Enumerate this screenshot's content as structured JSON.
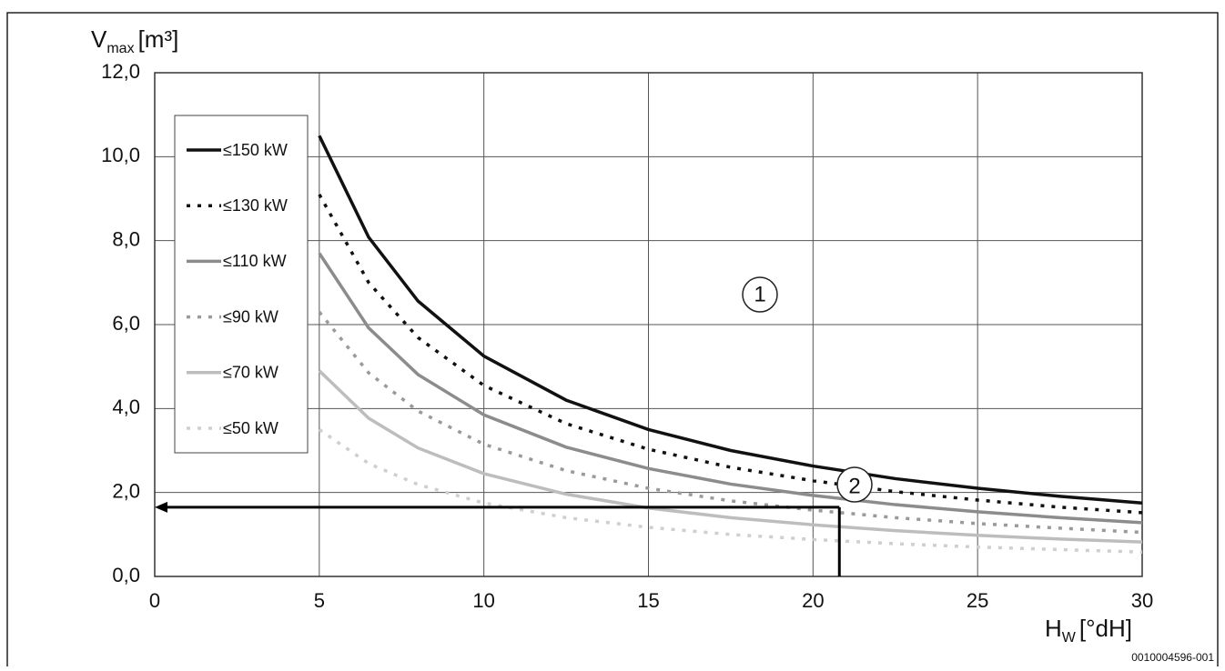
{
  "chart_data": {
    "type": "line",
    "y_label": {
      "main": "V",
      "sub": "max",
      "unit": "[m³]"
    },
    "x_label": {
      "main": "H",
      "sub": "W",
      "unit": "[°dH]"
    },
    "code": "0010004596-001",
    "annotations": [
      "1",
      "2"
    ],
    "x": [
      5,
      6.5,
      8,
      10,
      12.5,
      15,
      17.5,
      20,
      22.5,
      25,
      27.5,
      30
    ],
    "series": [
      {
        "name": "≤150 kW",
        "color": "#111111",
        "style": "solid",
        "values": [
          10.5,
          8.08,
          6.56,
          5.25,
          4.2,
          3.5,
          3.0,
          2.63,
          2.33,
          2.1,
          1.91,
          1.75
        ]
      },
      {
        "name": "≤130 kW",
        "color": "#111111",
        "style": "dotted",
        "values": [
          9.1,
          7.0,
          5.69,
          4.55,
          3.64,
          3.03,
          2.6,
          2.28,
          2.02,
          1.82,
          1.65,
          1.52
        ]
      },
      {
        "name": "≤110 kW",
        "color": "#8c8c8c",
        "style": "solid",
        "values": [
          7.7,
          5.92,
          4.81,
          3.85,
          3.08,
          2.57,
          2.2,
          1.93,
          1.71,
          1.54,
          1.4,
          1.28
        ]
      },
      {
        "name": "≤90 kW",
        "color": "#9a9a9a",
        "style": "dotted",
        "values": [
          6.3,
          4.85,
          3.94,
          3.15,
          2.52,
          2.1,
          1.8,
          1.58,
          1.4,
          1.26,
          1.15,
          1.05
        ]
      },
      {
        "name": "≤70 kW",
        "color": "#bdbdbd",
        "style": "solid",
        "values": [
          4.9,
          3.77,
          3.06,
          2.45,
          1.96,
          1.63,
          1.4,
          1.23,
          1.09,
          0.98,
          0.89,
          0.82
        ]
      },
      {
        "name": "≤50 kW",
        "color": "#cfcfcf",
        "style": "dotted",
        "values": [
          3.5,
          2.69,
          2.19,
          1.75,
          1.4,
          1.17,
          1.0,
          0.88,
          0.78,
          0.7,
          0.64,
          0.58
        ]
      }
    ],
    "reading": {
      "x": 20.8,
      "y": 1.65
    },
    "xlim": [
      0,
      30
    ],
    "xticks": [
      0,
      5,
      10,
      15,
      20,
      25,
      30
    ],
    "ylim": [
      0,
      12
    ],
    "yticks": [
      {
        "value": 0,
        "label": "0,0"
      },
      {
        "value": 2,
        "label": "2,0"
      },
      {
        "value": 4,
        "label": "4,0"
      },
      {
        "value": 6,
        "label": "6,0"
      },
      {
        "value": 8,
        "label": "8,0"
      },
      {
        "value": 10,
        "label": "10,0"
      },
      {
        "value": 12,
        "label": "12,0"
      }
    ],
    "grid": true
  }
}
